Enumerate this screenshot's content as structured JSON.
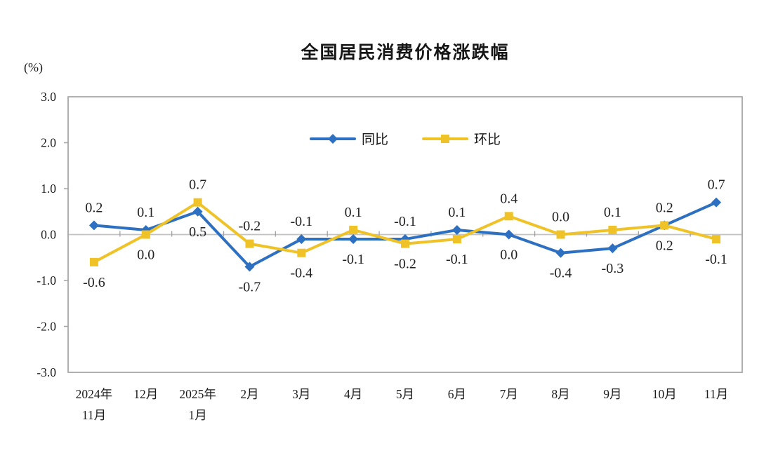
{
  "chart_data": {
    "type": "line",
    "title": "全国居民消费价格涨跌幅",
    "unit_label": "(%)",
    "categories": [
      "2024年\n11月",
      "12月",
      "2025年\n1月",
      "2月",
      "3月",
      "4月",
      "5月",
      "6月",
      "7月",
      "8月",
      "9月",
      "10月",
      "11月"
    ],
    "series": [
      {
        "name": "同比",
        "marker": "diamond",
        "color": "#2D6FC1",
        "values": [
          0.2,
          0.1,
          0.5,
          -0.7,
          -0.1,
          -0.1,
          -0.1,
          0.1,
          0.0,
          -0.4,
          -0.3,
          0.2,
          0.7
        ]
      },
      {
        "name": "环比",
        "marker": "square",
        "color": "#EFC327",
        "values": [
          -0.6,
          0.0,
          0.7,
          -0.2,
          -0.4,
          0.1,
          -0.2,
          -0.1,
          0.4,
          0.0,
          0.1,
          0.2,
          -0.1
        ]
      }
    ],
    "ylim": [
      -3.0,
      3.0
    ],
    "yticks": [
      3.0,
      2.0,
      1.0,
      0.0,
      -1.0,
      -2.0,
      -3.0
    ],
    "grid": "zero-line-only",
    "legend_position": "top-center-inside",
    "frame_color": "#A3A3A3",
    "zero_line_color": "#C2C2C2",
    "tick_color": "#A3A3A3",
    "text_color": "#1c1c1c",
    "data_label_color": "#222222"
  }
}
